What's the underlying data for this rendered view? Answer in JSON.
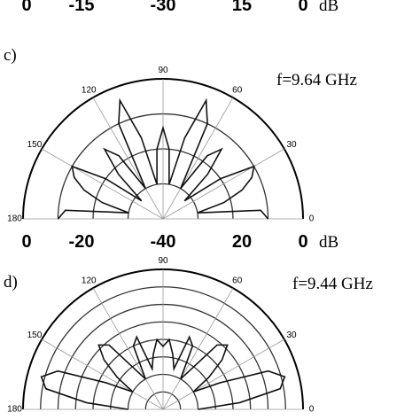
{
  "chart_data": [
    {
      "type": "axis-strip",
      "ticks_left": [
        0,
        -15
      ],
      "center": -30,
      "ticks_right": [
        15,
        0
      ],
      "unit": "dB"
    },
    {
      "type": "polar",
      "panel_label": "c)",
      "annotation": "f=9.64 GHz",
      "unit": "dB",
      "rlim": [
        -40,
        0
      ],
      "rticks": [
        -30,
        -20,
        -10,
        0
      ],
      "thetaticks": [
        0,
        30,
        60,
        90,
        120,
        150,
        180
      ],
      "ticks_left": [
        0,
        -20
      ],
      "center": -40,
      "ticks_right": [
        20,
        0
      ],
      "color": "#111111",
      "theta": [
        0,
        5,
        10,
        15,
        20,
        25,
        30,
        35,
        40,
        45,
        50,
        55,
        60,
        65,
        70,
        75,
        80,
        85,
        90,
        95,
        100,
        105,
        110,
        115,
        120,
        125,
        130,
        135,
        140,
        145,
        150,
        155,
        160,
        165,
        170,
        175,
        180
      ],
      "values": [
        -10,
        -12,
        -30,
        -22,
        -16,
        -12,
        -10,
        -20,
        -32,
        -22,
        -14,
        -18,
        -30,
        -10,
        -4,
        -16,
        -30,
        -20,
        -14,
        -20,
        -30,
        -16,
        -4,
        -10,
        -30,
        -18,
        -14,
        -22,
        -32,
        -20,
        -10,
        -12,
        -16,
        -22,
        -30,
        -12,
        -10
      ]
    },
    {
      "type": "polar",
      "panel_label": "d)",
      "annotation": "f=9.44 GHz",
      "rlim": [
        -40,
        0
      ],
      "rticks": [
        -35,
        -30,
        -25,
        -20,
        -15,
        -10,
        -5,
        0
      ],
      "thetaticks": [
        0,
        30,
        60,
        90,
        120,
        150,
        180
      ],
      "color": "#111111",
      "theta": [
        0,
        5,
        10,
        15,
        20,
        25,
        30,
        35,
        40,
        45,
        50,
        55,
        60,
        65,
        70,
        75,
        80,
        85,
        90,
        95,
        100,
        105,
        110,
        115,
        120,
        125,
        130,
        135,
        140,
        145,
        150,
        155,
        160,
        165,
        170,
        175,
        180
      ],
      "values": [
        -30,
        -18,
        -6,
        -4,
        -8,
        -22,
        -30,
        -24,
        -18,
        -14,
        -16,
        -26,
        -30,
        -20,
        -18,
        -28,
        -24,
        -20,
        -22,
        -20,
        -24,
        -28,
        -18,
        -20,
        -30,
        -26,
        -16,
        -14,
        -18,
        -24,
        -30,
        -22,
        -8,
        -4,
        -6,
        -18,
        -30
      ]
    }
  ]
}
